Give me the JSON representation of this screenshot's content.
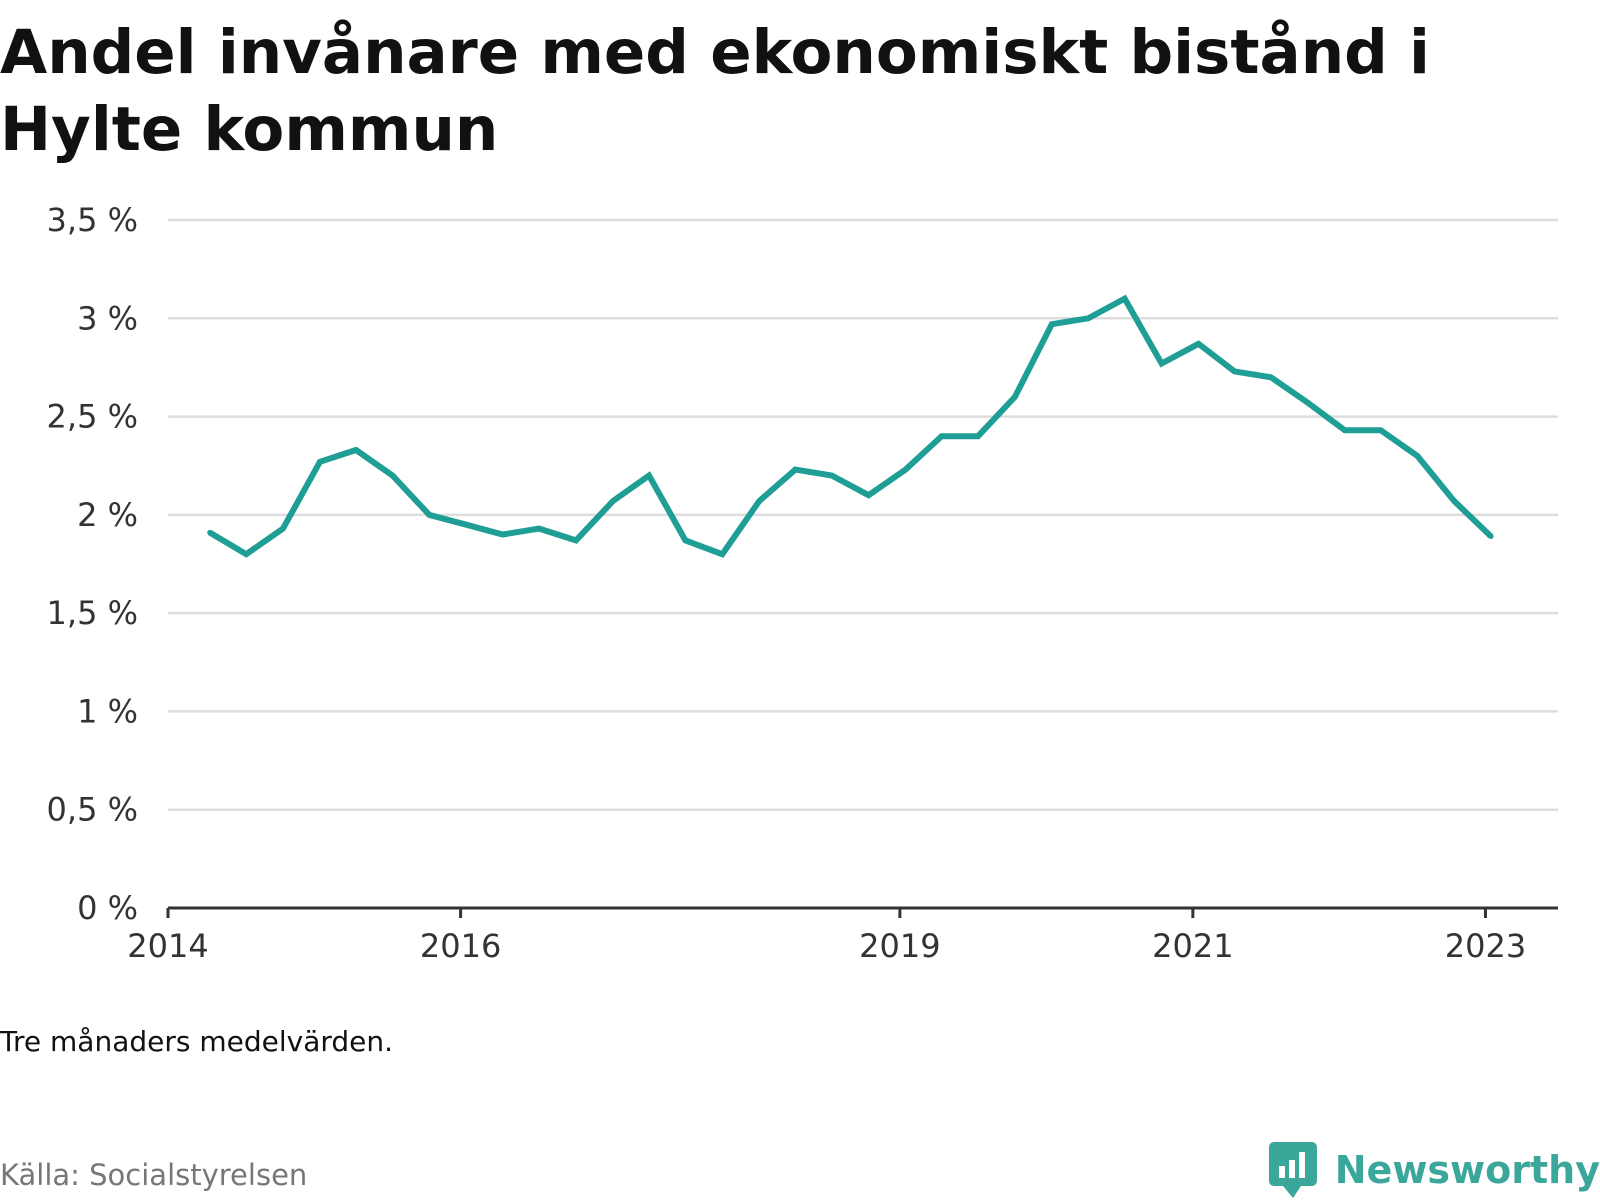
{
  "title": "Andel invånare med ekonomiskt bistånd i Hylte kommun",
  "note": "Tre månaders medelvärden.",
  "source": "Källa: Socialstyrelsen",
  "brand": {
    "name": "Newsworthy",
    "icon": "newsworthy-logo-icon",
    "color": "#3ba69a"
  },
  "chart_data": {
    "type": "line",
    "title": "Andel invånare med ekonomiskt bistånd i Hylte kommun",
    "xlabel": "",
    "ylabel": "",
    "ylim": [
      0,
      3.5
    ],
    "yticks": [
      0,
      0.5,
      1,
      1.5,
      2,
      2.5,
      3,
      3.5
    ],
    "ytick_labels": [
      "0 %",
      "0,5 %",
      "1 %",
      "1,5 %",
      "2 %",
      "2,5 %",
      "3 %",
      "3,5 %"
    ],
    "xlim": [
      "2014-01-01",
      "2023-07-01"
    ],
    "xticks": [
      "2014-01-01",
      "2016-01-01",
      "2019-01-01",
      "2021-01-01",
      "2023-01-01"
    ],
    "xtick_labels": [
      "2014",
      "2016",
      "2019",
      "2021",
      "2023"
    ],
    "grid": true,
    "line_color": "#1e9e94",
    "series": [
      {
        "x": [
          "2014-04-15",
          "2014-07-15",
          "2014-10-15",
          "2015-01-15",
          "2015-04-15",
          "2015-07-15",
          "2015-10-15",
          "2016-01-15",
          "2016-04-15",
          "2016-07-15",
          "2016-10-15",
          "2017-01-15",
          "2017-04-15",
          "2017-07-15",
          "2017-10-15",
          "2018-01-15",
          "2018-04-15",
          "2018-07-15",
          "2018-10-15",
          "2019-01-15",
          "2019-04-15",
          "2019-07-15",
          "2019-10-15",
          "2020-01-15",
          "2020-04-15",
          "2020-07-15",
          "2020-10-15",
          "2021-01-15",
          "2021-04-15",
          "2021-07-15",
          "2021-10-15",
          "2022-01-15",
          "2022-04-15",
          "2022-07-15",
          "2022-10-15",
          "2023-01-15"
        ],
        "values": [
          1.91,
          1.8,
          1.93,
          2.27,
          2.33,
          2.2,
          2.0,
          1.95,
          1.9,
          1.93,
          1.87,
          2.07,
          2.2,
          1.87,
          1.8,
          2.07,
          2.23,
          2.2,
          2.1,
          2.23,
          2.4,
          2.4,
          2.6,
          2.97,
          3.0,
          3.1,
          2.77,
          2.87,
          2.73,
          2.7,
          2.57,
          2.43,
          2.43,
          2.3,
          2.07,
          1.89
        ]
      }
    ]
  }
}
